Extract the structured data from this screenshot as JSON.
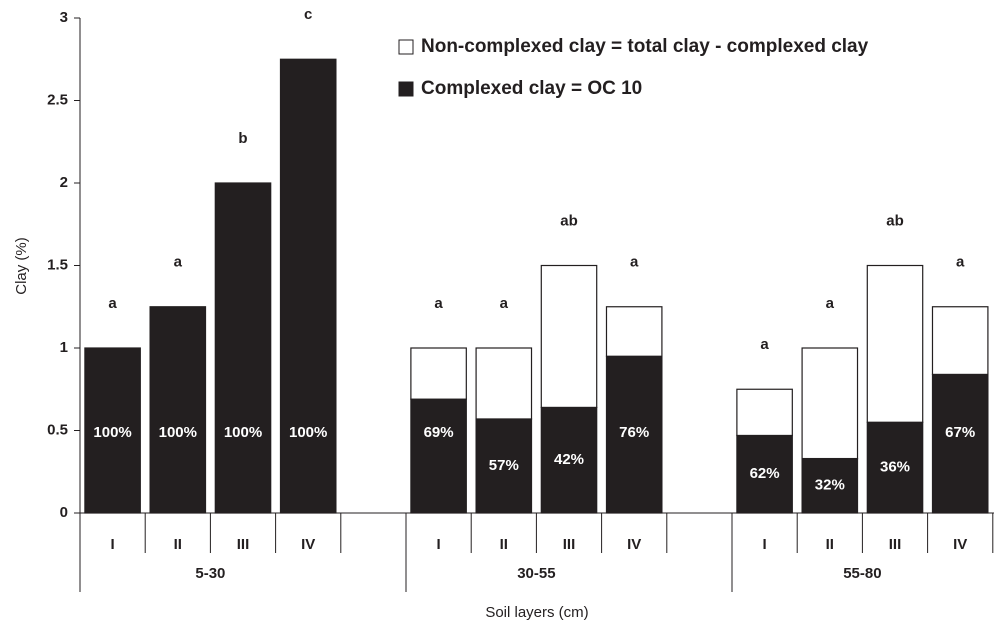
{
  "chart_data": {
    "type": "stacked_bar",
    "y_label": "Clay (%)",
    "x_label": "Soil layers (cm)",
    "categories": [
      "I",
      "II",
      "III",
      "IV",
      null,
      "I",
      "II",
      "III",
      "IV",
      null,
      "I",
      "II",
      "III",
      "IV"
    ],
    "group_labels": [
      "5-30",
      "30-55",
      "55-80"
    ],
    "series": [
      {
        "name": "Complexed clay = OC 10",
        "color": "#231f20",
        "values": [
          1,
          1.25,
          2,
          2.75,
          null,
          0.69,
          0.57,
          0.64,
          0.95,
          null,
          0.47,
          0.33,
          0.55,
          0.84
        ],
        "percent_labels": [
          "100%",
          "100%",
          "100%",
          "100%",
          null,
          "69%",
          "57%",
          "42%",
          "76%",
          null,
          "62%",
          "32%",
          "36%",
          "67%"
        ]
      },
      {
        "name": "Non-complexed clay = total clay - complexed clay",
        "color": "#ffffff",
        "values": [
          0,
          0,
          0,
          0,
          null,
          0.31,
          0.43,
          0.86,
          0.3,
          null,
          0.28,
          0.67,
          0.95,
          0.41
        ]
      }
    ],
    "significance_labels": [
      "a",
      "a",
      "b",
      "c",
      null,
      "a",
      "a",
      "ab",
      "a",
      null,
      "a",
      "a",
      "ab",
      "a"
    ],
    "ylim": [
      0,
      3
    ],
    "yticks": [
      0,
      0.5,
      1,
      1.5,
      2,
      2.5,
      3
    ]
  }
}
